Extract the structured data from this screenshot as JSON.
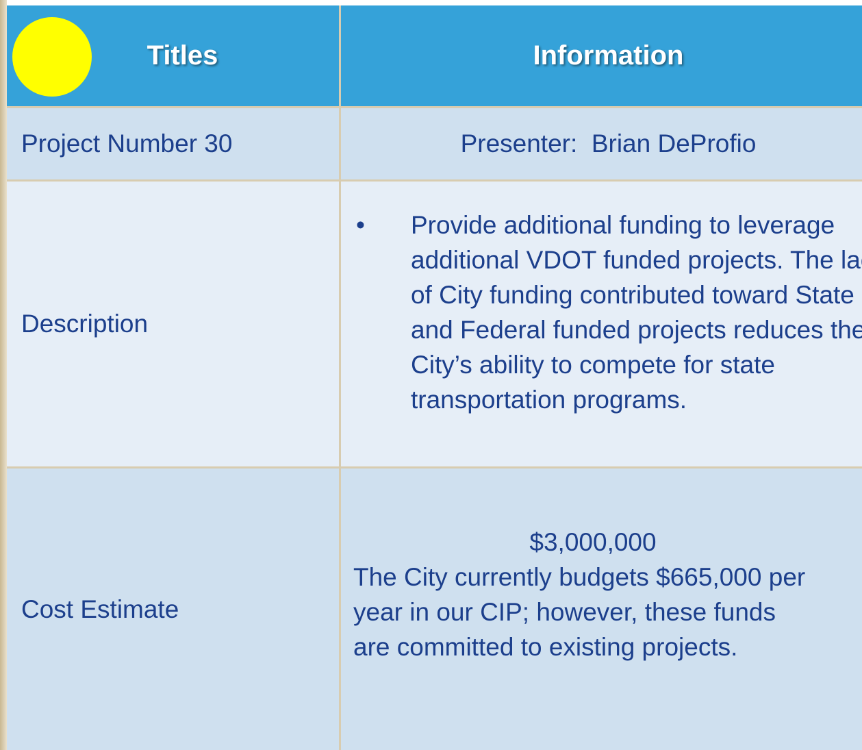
{
  "table": {
    "header": [
      "Titles",
      "Information"
    ],
    "rows": [
      [
        "Project Number 30",
        "Presenter:  Brian DeProfio"
      ],
      [
        "Description",
        [
          "Provide additional funding to leverage additional VDOT funded projects. The lack of City funding contributed toward State and Federal funded projects reduces the City’s ability to compete for state transportation programs."
        ]
      ],
      [
        "Cost Estimate",
        [
          "$3,000,000",
          "The City currently budgets $665,000 per year in our CIP; however, these funds are committed to existing projects."
        ]
      ]
    ]
  }
}
